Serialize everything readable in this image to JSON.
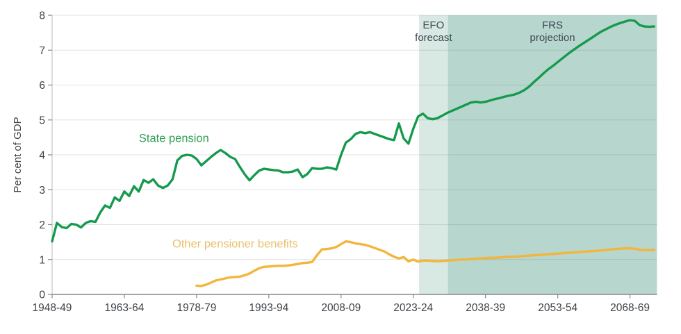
{
  "page": {
    "background": "#ffffff"
  },
  "chart_data": {
    "type": "line",
    "title": "",
    "xlabel": "",
    "ylabel": "Per cent of GDP",
    "ylim": [
      0,
      8
    ],
    "y_ticks": [
      0,
      1,
      2,
      3,
      4,
      5,
      6,
      7,
      8
    ],
    "x_range": [
      1948,
      2073.6
    ],
    "x_ticks": [
      {
        "year": 1948,
        "label": "1948-49"
      },
      {
        "year": 1963,
        "label": "1963-64"
      },
      {
        "year": 1978,
        "label": "1978-79"
      },
      {
        "year": 1993,
        "label": "1993-94"
      },
      {
        "year": 2008,
        "label": "2008-09"
      },
      {
        "year": 2023,
        "label": "2023-24"
      },
      {
        "year": 2038,
        "label": "2038-39"
      },
      {
        "year": 2053,
        "label": "2053-54"
      },
      {
        "year": 2068,
        "label": "2068-69"
      }
    ],
    "grid": "horizontal",
    "legend_position": "inline-labels",
    "axis_color": "#85878a",
    "y_axis_line_color": "#b8babd",
    "gridline_color": "rgba(70,80,80,0.16)",
    "tick_label_color": "#3f4449",
    "band_label_color": "#3d4752",
    "bands": [
      {
        "name": "efo-forecast-band",
        "label_lines": [
          "EFO",
          "forecast"
        ],
        "start_year": 2024.2,
        "end_year": 2030.2,
        "color": "#d8e8e2"
      },
      {
        "name": "frs-projection-band",
        "label_lines": [
          "FRS",
          "projection"
        ],
        "start_year": 2030.2,
        "end_year": 2073.6,
        "color": "#b7d6cd"
      }
    ],
    "series": [
      {
        "name": "State pension",
        "slug": "state-pension",
        "color": "#159a4d",
        "label_color": "#2f9f58",
        "start_year": 1948,
        "label_anchor": {
          "year": 1973.3,
          "value": 4.48
        },
        "values": [
          1.52,
          2.05,
          1.93,
          1.9,
          2.02,
          2.0,
          1.92,
          2.05,
          2.1,
          2.08,
          2.35,
          2.55,
          2.48,
          2.78,
          2.68,
          2.95,
          2.82,
          3.1,
          2.95,
          3.28,
          3.2,
          3.3,
          3.12,
          3.05,
          3.12,
          3.3,
          3.84,
          3.97,
          4.0,
          3.98,
          3.88,
          3.7,
          3.82,
          3.94,
          4.05,
          4.14,
          4.05,
          3.94,
          3.88,
          3.65,
          3.44,
          3.27,
          3.42,
          3.55,
          3.6,
          3.58,
          3.56,
          3.55,
          3.5,
          3.5,
          3.52,
          3.58,
          3.36,
          3.45,
          3.62,
          3.6,
          3.6,
          3.64,
          3.62,
          3.58,
          4.0,
          4.35,
          4.45,
          4.6,
          4.65,
          4.62,
          4.65,
          4.6,
          4.55,
          4.5,
          4.45,
          4.42,
          4.9,
          4.47,
          4.32,
          4.75,
          5.1,
          5.18,
          5.05,
          5.02,
          5.05,
          5.12,
          5.2,
          5.26,
          5.32,
          5.38,
          5.44,
          5.5,
          5.52,
          5.5,
          5.52,
          5.56,
          5.6,
          5.63,
          5.67,
          5.7,
          5.73,
          5.78,
          5.85,
          5.95,
          6.08,
          6.2,
          6.33,
          6.45,
          6.55,
          6.66,
          6.77,
          6.88,
          6.98,
          7.08,
          7.17,
          7.26,
          7.35,
          7.44,
          7.53,
          7.6,
          7.67,
          7.73,
          7.78,
          7.82,
          7.86,
          7.84,
          7.72,
          7.68,
          7.67,
          7.68
        ]
      },
      {
        "name": "Other pensioner benefits",
        "slug": "other-pensioner-benefits",
        "color": "#f3b53b",
        "label_color": "#e9c06a",
        "start_year": 1978,
        "label_anchor": {
          "year": 1986,
          "value": 1.45
        },
        "values": [
          0.25,
          0.24,
          0.28,
          0.34,
          0.4,
          0.43,
          0.46,
          0.49,
          0.5,
          0.51,
          0.55,
          0.6,
          0.68,
          0.75,
          0.79,
          0.8,
          0.81,
          0.82,
          0.82,
          0.83,
          0.85,
          0.87,
          0.9,
          0.91,
          0.93,
          1.12,
          1.29,
          1.3,
          1.32,
          1.36,
          1.44,
          1.52,
          1.5,
          1.46,
          1.44,
          1.42,
          1.38,
          1.33,
          1.28,
          1.23,
          1.15,
          1.08,
          1.03,
          1.07,
          0.95,
          1.0,
          0.94,
          0.97,
          0.97,
          0.96,
          0.95,
          0.96,
          0.97,
          0.98,
          0.99,
          1.0,
          1.0,
          1.01,
          1.02,
          1.03,
          1.04,
          1.05,
          1.05,
          1.06,
          1.07,
          1.08,
          1.08,
          1.09,
          1.1,
          1.11,
          1.12,
          1.13,
          1.14,
          1.15,
          1.16,
          1.17,
          1.18,
          1.19,
          1.2,
          1.21,
          1.22,
          1.23,
          1.24,
          1.25,
          1.26,
          1.27,
          1.29,
          1.3,
          1.31,
          1.32,
          1.32,
          1.31,
          1.28,
          1.27,
          1.27,
          1.28
        ]
      }
    ]
  }
}
